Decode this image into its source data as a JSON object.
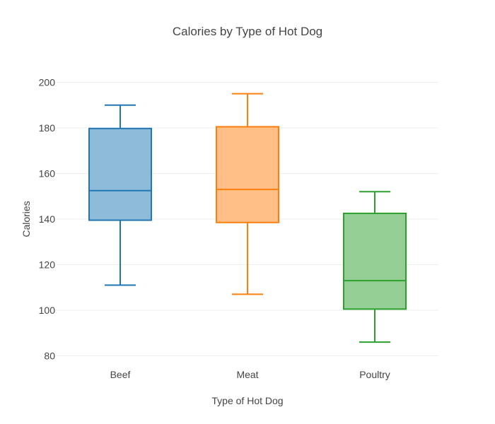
{
  "chart_data": {
    "type": "box",
    "title": "Calories by Type of Hot Dog",
    "xlabel": "Type of Hot Dog",
    "ylabel": "Calories",
    "ylim": [
      75,
      210
    ],
    "yticks": [
      80,
      100,
      120,
      140,
      160,
      180,
      200
    ],
    "grid": true,
    "legend": "none",
    "categories": [
      "Beef",
      "Meat",
      "Poultry"
    ],
    "series": [
      {
        "category": "Beef",
        "min": 111,
        "q1": 139.5,
        "median": 152.5,
        "q3": 179.75,
        "max": 190,
        "color": "#1f77b4",
        "fill": "#8fbbda"
      },
      {
        "category": "Meat",
        "min": 107,
        "q1": 138.5,
        "median": 153,
        "q3": 180.5,
        "max": 195,
        "color": "#ff7f0e",
        "fill": "#ffbf86"
      },
      {
        "category": "Poultry",
        "min": 86,
        "q1": 100.5,
        "median": 113,
        "q3": 142.5,
        "max": 152,
        "color": "#2ca02c",
        "fill": "#95cf95"
      }
    ]
  }
}
